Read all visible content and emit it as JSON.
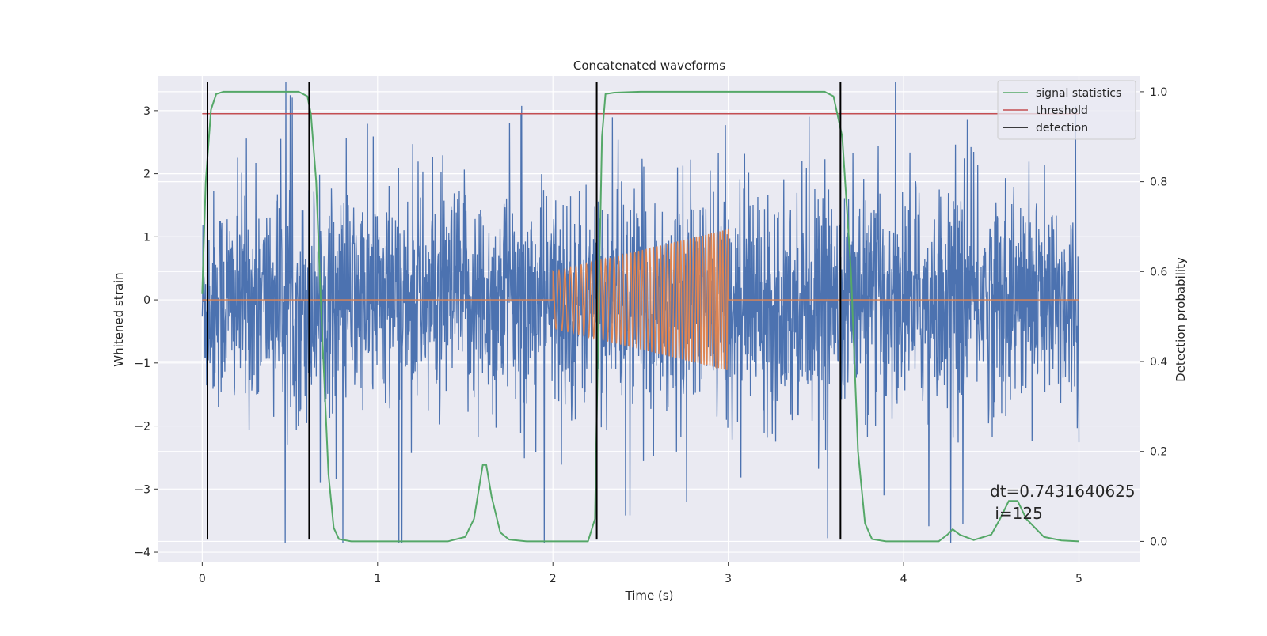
{
  "chart_data": {
    "type": "line",
    "title": "Concatenated waveforms",
    "xlabel": "Time (s)",
    "ylabel": "Whitened strain",
    "ylabel_right": "Detection probability",
    "xlim": [
      -0.25,
      5.35
    ],
    "ylim": [
      -4.15,
      3.55
    ],
    "ylim_right": [
      -0.045,
      1.035
    ],
    "x_ticks": [
      "0",
      "1",
      "2",
      "3",
      "4",
      "5"
    ],
    "y_ticks": [
      "3",
      "2",
      "1",
      "0",
      "−1",
      "−2",
      "−3",
      "−4"
    ],
    "y_right_ticks": [
      "1.0",
      "0.8",
      "0.6",
      "0.4",
      "0.2",
      "0.0"
    ],
    "grid": true,
    "legend_position": "top-right",
    "legend": [
      "signal statistics",
      "threshold",
      "detection"
    ],
    "series": [
      {
        "name": "whitened strain (noise)",
        "type": "noise",
        "x_range": [
          0,
          5
        ],
        "approx_std": 0.55,
        "approx_max": 3.45,
        "approx_min": -3.85,
        "color": "#4c72b0"
      },
      {
        "name": "injected chirp",
        "type": "chirp",
        "x_range": [
          2.0,
          3.0
        ],
        "amp_start": 0.45,
        "amp_end": 1.12,
        "elsewhere": 0,
        "color": "#dd8452"
      },
      {
        "name": "signal statistics",
        "axis": "right",
        "color": "#55a868",
        "x": [
          0,
          0.02,
          0.05,
          0.08,
          0.12,
          0.2,
          0.55,
          0.6,
          0.62,
          0.65,
          0.68,
          0.72,
          0.75,
          0.78,
          0.85,
          1.0,
          1.4,
          1.5,
          1.55,
          1.6,
          1.62,
          1.65,
          1.7,
          1.75,
          1.85,
          2.2,
          2.24,
          2.26,
          2.28,
          2.3,
          2.35,
          2.5,
          3.55,
          3.6,
          3.65,
          3.7,
          3.74,
          3.78,
          3.82,
          3.9,
          4.2,
          4.25,
          4.28,
          4.32,
          4.4,
          4.5,
          4.55,
          4.6,
          4.65,
          4.7,
          4.8,
          4.9,
          5.0
        ],
        "y": [
          0.55,
          0.8,
          0.96,
          0.995,
          1.0,
          1.0,
          1.0,
          0.99,
          0.95,
          0.8,
          0.5,
          0.15,
          0.03,
          0.005,
          0.0,
          0.0,
          0.0,
          0.01,
          0.05,
          0.17,
          0.17,
          0.1,
          0.02,
          0.004,
          0.0,
          0.0,
          0.05,
          0.5,
          0.9,
          0.995,
          0.998,
          1.0,
          1.0,
          0.99,
          0.9,
          0.6,
          0.2,
          0.04,
          0.005,
          0.0,
          0.0,
          0.015,
          0.027,
          0.015,
          0.003,
          0.015,
          0.05,
          0.09,
          0.09,
          0.05,
          0.01,
          0.002,
          0.0
        ]
      },
      {
        "name": "threshold",
        "axis": "right",
        "color": "#c44e52",
        "x": [
          0,
          5
        ],
        "y": [
          0.951,
          0.951
        ]
      },
      {
        "name": "detection",
        "type": "vlines",
        "color": "#000000",
        "x": [
          0.03,
          0.61,
          2.25,
          3.64
        ],
        "ymin": -3.8,
        "ymax": 3.45
      }
    ],
    "annotation": {
      "line1": "dt=0.7431640625",
      "line2": " i=125",
      "x": 4.5,
      "y": -3.0
    }
  }
}
